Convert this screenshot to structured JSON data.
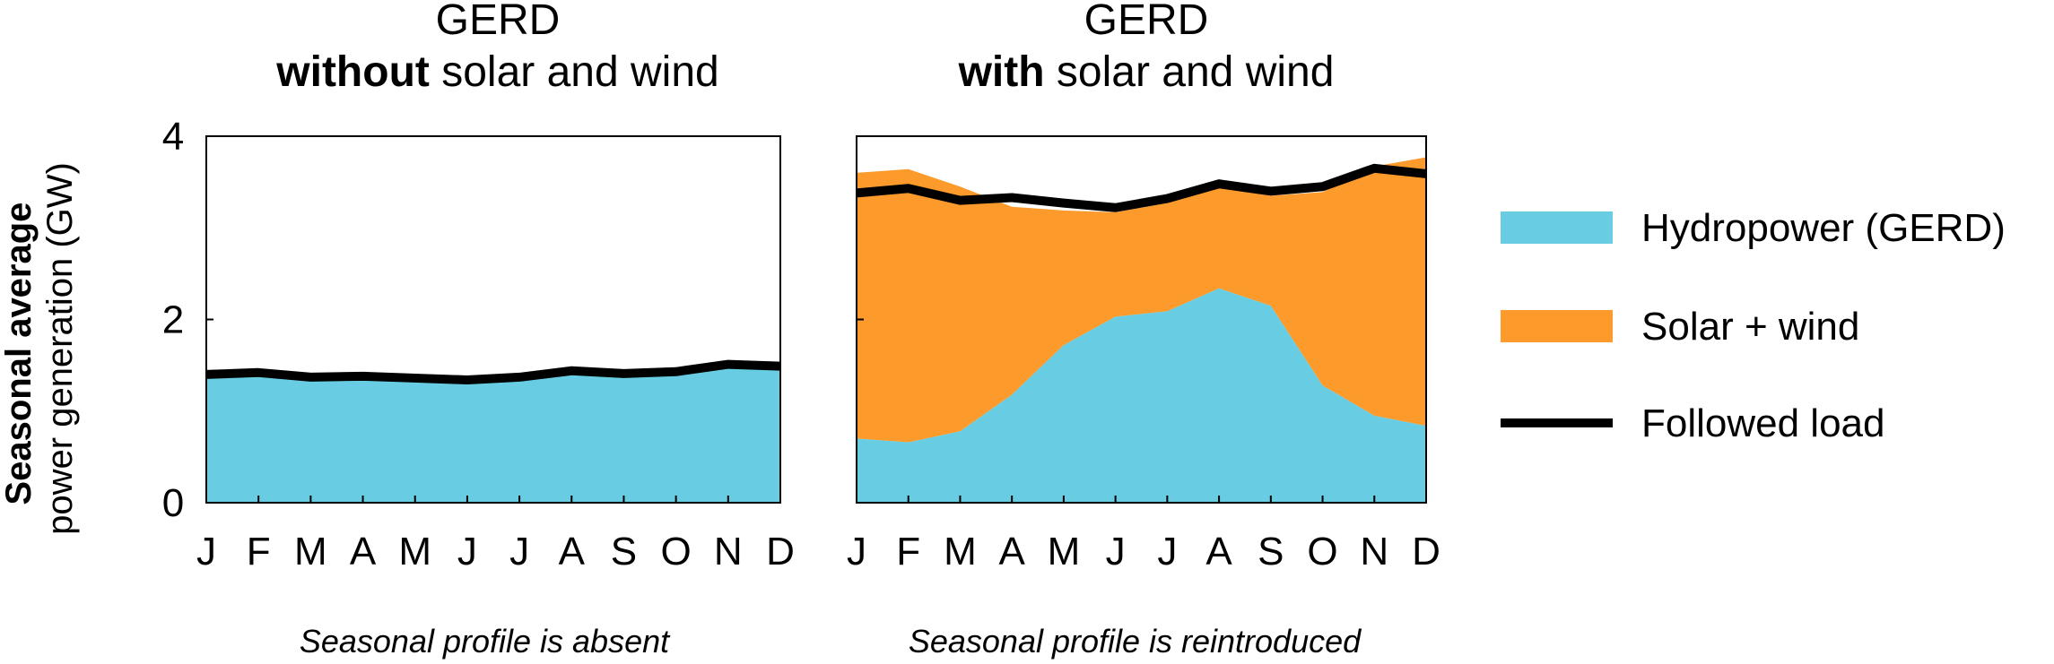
{
  "colors": {
    "hydro": "#68CDE3",
    "solar_wind": "#FC9A2C",
    "load": "#000000"
  },
  "ylabel": {
    "bold": "Seasonal average",
    "normal": "power generation (GW)"
  },
  "legend": {
    "items": [
      {
        "label": "Hydropower (GERD)",
        "color": "#68CDE3",
        "kind": "area"
      },
      {
        "label": "Solar + wind",
        "color": "#FC9A2C",
        "kind": "area"
      },
      {
        "label": "Followed load",
        "color": "#000000",
        "kind": "line"
      }
    ]
  },
  "chart_data": [
    {
      "type": "area",
      "title_line1": "GERD",
      "title_bold": "without",
      "title_rest": " solar and wind",
      "caption": "Seasonal profile is absent",
      "categories": [
        "J",
        "F",
        "M",
        "A",
        "M",
        "J",
        "J",
        "A",
        "S",
        "O",
        "N",
        "D"
      ],
      "ylim": [
        0,
        4
      ],
      "yticks": [
        0,
        2,
        4
      ],
      "series": [
        {
          "name": "Hydropower (GERD)",
          "values": [
            1.4,
            1.42,
            1.37,
            1.38,
            1.36,
            1.34,
            1.37,
            1.44,
            1.41,
            1.43,
            1.51,
            1.49
          ]
        },
        {
          "name": "Followed load",
          "values": [
            1.4,
            1.42,
            1.37,
            1.38,
            1.36,
            1.34,
            1.37,
            1.44,
            1.41,
            1.43,
            1.51,
            1.49
          ]
        }
      ]
    },
    {
      "type": "area",
      "title_line1": "GERD",
      "title_bold": "with",
      "title_rest": " solar and wind",
      "caption": "Seasonal profile is reintroduced",
      "categories": [
        "J",
        "F",
        "M",
        "A",
        "M",
        "J",
        "J",
        "A",
        "S",
        "O",
        "N",
        "D"
      ],
      "ylim": [
        0,
        4
      ],
      "yticks": [
        0,
        2,
        4
      ],
      "series": [
        {
          "name": "Hydropower (GERD)",
          "values": [
            0.7,
            0.66,
            0.78,
            1.18,
            1.72,
            2.03,
            2.09,
            2.34,
            2.15,
            1.28,
            0.95,
            0.84
          ]
        },
        {
          "name": "Solar + wind",
          "values": [
            2.9,
            2.98,
            2.67,
            2.05,
            1.47,
            1.14,
            1.18,
            1.12,
            1.2,
            2.11,
            2.72,
            2.93
          ]
        },
        {
          "name": "Followed load",
          "values": [
            3.38,
            3.43,
            3.3,
            3.33,
            3.27,
            3.22,
            3.32,
            3.48,
            3.4,
            3.45,
            3.65,
            3.59
          ]
        }
      ]
    }
  ]
}
